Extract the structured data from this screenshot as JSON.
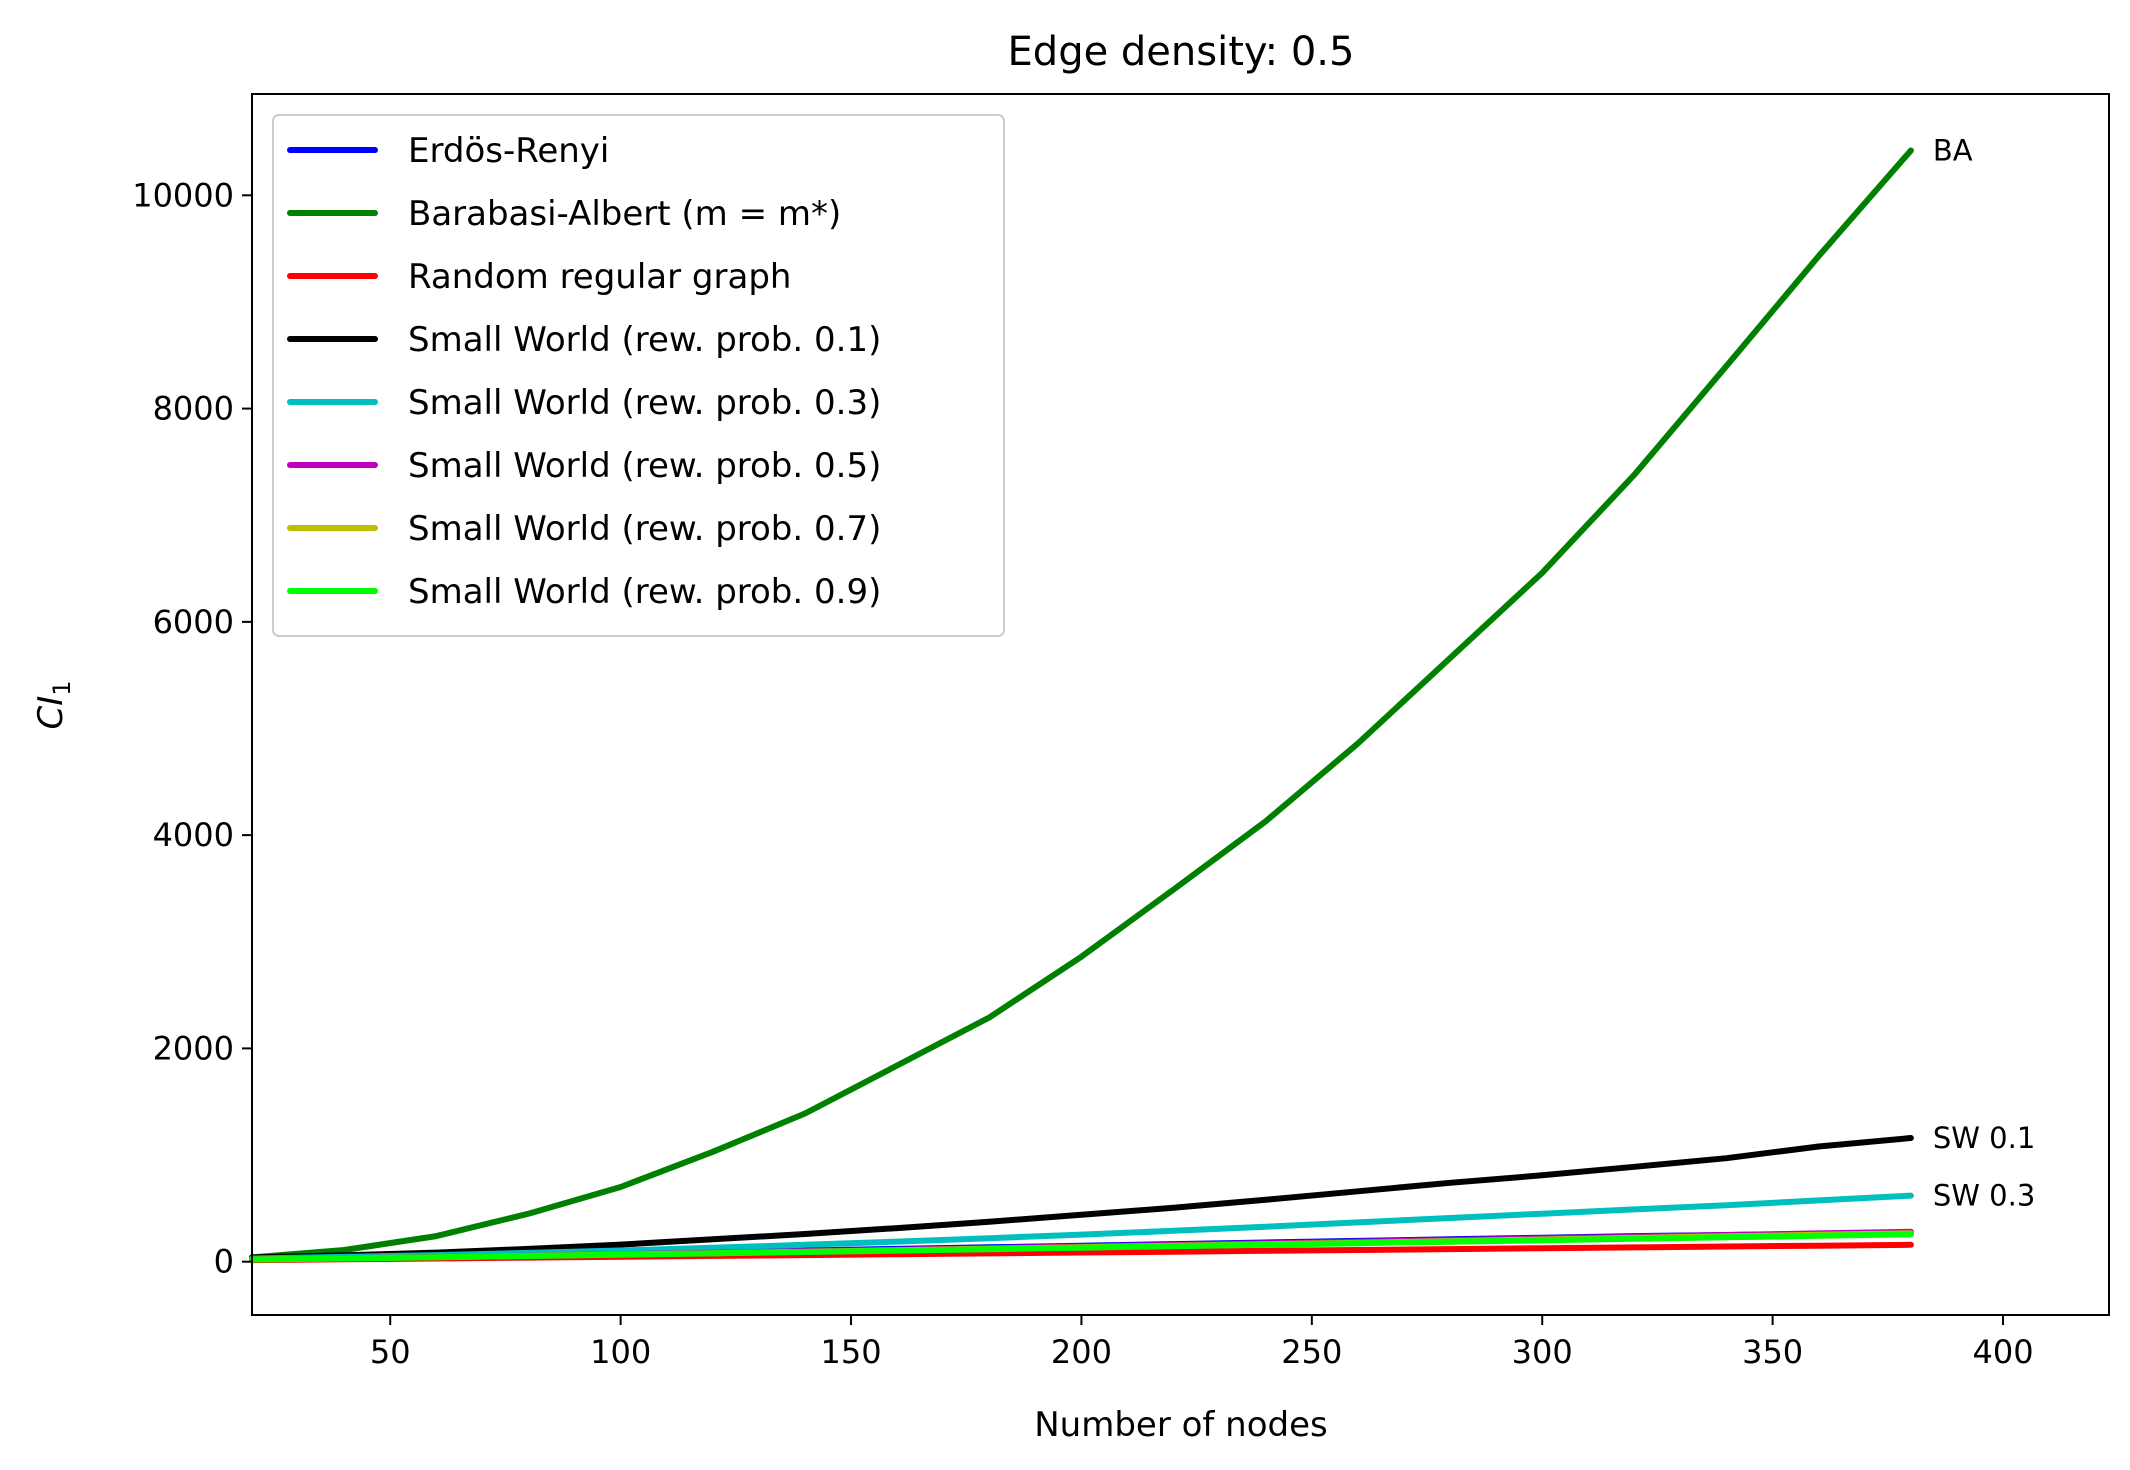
{
  "chart_data": {
    "type": "line",
    "title": "Edge density: 0.5",
    "xlabel": "Number of nodes",
    "ylabel_main": "CI",
    "ylabel_sub": "1",
    "xlim": [
      20,
      423
    ],
    "ylim": [
      -500,
      10950
    ],
    "xticks": [
      50,
      100,
      150,
      200,
      250,
      300,
      350,
      400
    ],
    "xtick_labels": [
      "50",
      "100",
      "150",
      "200",
      "250",
      "300",
      "350",
      "400"
    ],
    "yticks": [
      0,
      2000,
      4000,
      6000,
      8000,
      10000
    ],
    "ytick_labels": [
      "0",
      "2000",
      "4000",
      "6000",
      "8000",
      "10000"
    ],
    "grid": false,
    "legend_position": "top-left",
    "x": [
      20,
      40,
      60,
      80,
      100,
      120,
      140,
      160,
      180,
      200,
      220,
      240,
      260,
      280,
      300,
      320,
      340,
      360,
      380
    ],
    "series": [
      {
        "name": "Erdös-Renyi",
        "color": "#0000ff",
        "values": [
          20,
          30,
          45,
          60,
          75,
          90,
          105,
          120,
          135,
          150,
          165,
          180,
          195,
          210,
          225,
          240,
          250,
          260,
          275
        ]
      },
      {
        "name": "Barabasi-Albert (m = m*)",
        "color": "#008000",
        "values": [
          40,
          110,
          240,
          450,
          700,
          1030,
          1390,
          1840,
          2290,
          2860,
          3490,
          4130,
          4860,
          5660,
          6460,
          7380,
          8400,
          9430,
          10420
        ]
      },
      {
        "name": "Random regular graph",
        "color": "#ff0000",
        "values": [
          15,
          22,
          30,
          38,
          46,
          54,
          62,
          70,
          78,
          86,
          94,
          102,
          110,
          118,
          126,
          134,
          142,
          150,
          158
        ]
      },
      {
        "name": "Small World (rew. prob. 0.1)",
        "color": "#000000",
        "values": [
          40,
          60,
          85,
          120,
          160,
          210,
          260,
          315,
          375,
          440,
          505,
          580,
          660,
          740,
          810,
          890,
          970,
          1080,
          1160
        ]
      },
      {
        "name": "Small World (rew. prob. 0.3)",
        "color": "#00bfbf",
        "values": [
          30,
          45,
          62,
          82,
          105,
          130,
          158,
          188,
          220,
          254,
          290,
          328,
          368,
          410,
          450,
          490,
          530,
          575,
          620
        ]
      },
      {
        "name": "Small World (rew. prob. 0.5)",
        "color": "#bf00bf",
        "values": [
          22,
          32,
          44,
          56,
          70,
          84,
          98,
          112,
          127,
          142,
          157,
          172,
          187,
          202,
          218,
          234,
          250,
          265,
          280
        ]
      },
      {
        "name": "Small World (rew. prob. 0.7)",
        "color": "#bfbf00",
        "values": [
          21,
          31,
          42,
          54,
          67,
          80,
          94,
          108,
          122,
          136,
          150,
          164,
          178,
          193,
          208,
          223,
          238,
          252,
          266
        ]
      },
      {
        "name": "Small World (rew. prob. 0.9)",
        "color": "#00ff00",
        "values": [
          20,
          30,
          41,
          53,
          65,
          78,
          91,
          104,
          117,
          131,
          145,
          159,
          173,
          187,
          201,
          215,
          229,
          243,
          257
        ]
      }
    ],
    "legend_labels": [
      "Erdös-Renyi",
      "Barabasi-Albert (m = m*)",
      "Random regular graph",
      "Small World (rew. prob. 0.1)",
      "Small World (rew. prob. 0.3)",
      "Small World (rew. prob. 0.5)",
      "Small World (rew. prob. 0.7)",
      "Small World (rew. prob. 0.9)"
    ],
    "annotations": [
      {
        "text": "BA",
        "x": 380,
        "y": 10420
      },
      {
        "text": "SW 0.1",
        "x": 380,
        "y": 1160
      },
      {
        "text": "SW 0.3",
        "x": 380,
        "y": 620
      }
    ]
  }
}
